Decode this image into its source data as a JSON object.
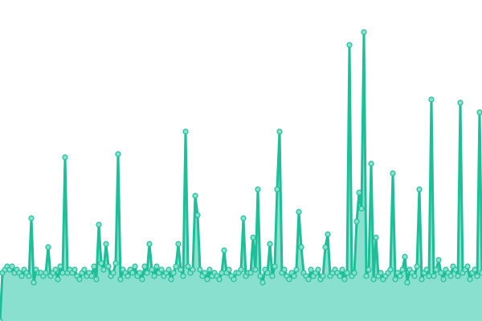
{
  "chart_data": {
    "type": "area",
    "title": "",
    "xlabel": "",
    "ylabel": "",
    "ylim": [
      0,
      100
    ],
    "grid": false,
    "legend": "none",
    "colors": {
      "line": "#1dbf98",
      "fill": "#8ae0cf",
      "point_fill": "#8ae0cf",
      "point_stroke": "#1dbf98"
    },
    "values": [
      0,
      15,
      16,
      17,
      16,
      17,
      15,
      16,
      15,
      14,
      16,
      15,
      14,
      32,
      12,
      16,
      15,
      15,
      14,
      15,
      23,
      14,
      15,
      16,
      13,
      17,
      15,
      51,
      15,
      16,
      15,
      16,
      14,
      13,
      15,
      16,
      14,
      15,
      14,
      17,
      13,
      30,
      18,
      16,
      24,
      17,
      14,
      15,
      18,
      52,
      13,
      16,
      15,
      14,
      16,
      15,
      17,
      14,
      15,
      13,
      17,
      15,
      24,
      16,
      14,
      17,
      15,
      16,
      14,
      15,
      16,
      13,
      15,
      17,
      24,
      16,
      14,
      59,
      17,
      15,
      16,
      39,
      33,
      16,
      14,
      15,
      13,
      16,
      14,
      15,
      14,
      13,
      15,
      22,
      15,
      16,
      14,
      13,
      15,
      15,
      16,
      32,
      14,
      15,
      15,
      26,
      16,
      41,
      14,
      12,
      16,
      15,
      24,
      14,
      17,
      41,
      59,
      15,
      16,
      14,
      13,
      15,
      14,
      16,
      34,
      23,
      15,
      14,
      13,
      16,
      14,
      15,
      16,
      13,
      14,
      23,
      27,
      14,
      15,
      16,
      15,
      14,
      16,
      13,
      15,
      86,
      14,
      15,
      31,
      40,
      35,
      90,
      14,
      16,
      49,
      13,
      26,
      14,
      15,
      13,
      14,
      15,
      16,
      46,
      13,
      15,
      14,
      16,
      20,
      12,
      16,
      15,
      14,
      17,
      41,
      13,
      15,
      16,
      14,
      69,
      14,
      16,
      19,
      15,
      13,
      16,
      15,
      14,
      17,
      16,
      14,
      68,
      15,
      16,
      17,
      13,
      15,
      16,
      14,
      65,
      15
    ]
  }
}
